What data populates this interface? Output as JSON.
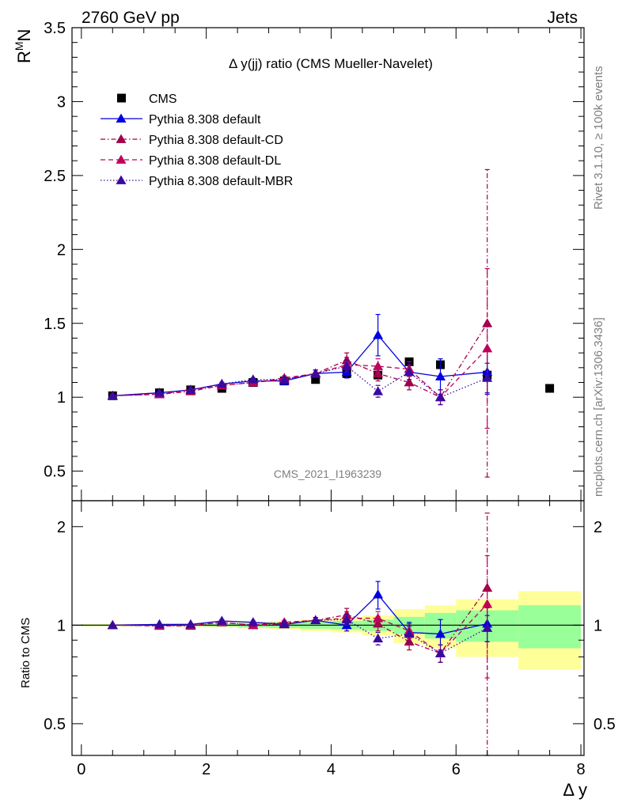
{
  "header": {
    "left": "2760 GeV pp",
    "right": "Jets"
  },
  "side_labels": {
    "top": "Rivet 3.1.10, ≥ 100k events",
    "bottom": "mcplots.cern.ch [arXiv:1306.3436]"
  },
  "watermark": "CMS_2021_I1963239",
  "colors": {
    "cms": "#000000",
    "default": "#0000e0",
    "cd": "#a0004a",
    "dl": "#c0005a",
    "mbr": "#3a0aa0",
    "band_inner": "#99ff99",
    "band_outer": "#ffff99"
  },
  "chart_data": [
    {
      "type": "line",
      "title": "Δ y(jj) ratio (CMS Mueller-Navelet)",
      "ylabel": "R^M N",
      "ylabel_main": "R",
      "ylabel_sup": "M",
      "ylabel_sub": "N",
      "xlim": [
        -0.15,
        8.05
      ],
      "ylim": [
        0.3,
        3.5
      ],
      "yticks": [
        0.5,
        1,
        1.5,
        2,
        2.5,
        3,
        3.5
      ],
      "ytick_labels": [
        "0.5",
        "1",
        "1.5",
        "2",
        "2.5",
        "3",
        "3.5"
      ],
      "legend_placement": "top-left",
      "series": [
        {
          "name": "CMS",
          "style": "markers",
          "x": [
            0.5,
            1.25,
            1.75,
            2.25,
            2.75,
            3.25,
            3.75,
            4.25,
            4.75,
            5.25,
            5.75,
            6.5,
            7.5
          ],
          "y": [
            1.01,
            1.03,
            1.05,
            1.06,
            1.1,
            1.11,
            1.12,
            1.16,
            1.15,
            1.24,
            1.22,
            1.15,
            1.06
          ]
        },
        {
          "name": "Pythia 8.308 default",
          "style": "solid",
          "x": [
            0.5,
            1.25,
            1.75,
            2.25,
            2.75,
            3.25,
            3.75,
            4.25,
            4.75,
            5.25,
            5.75,
            6.5
          ],
          "y": [
            1.01,
            1.03,
            1.05,
            1.09,
            1.11,
            1.11,
            1.16,
            1.17,
            1.42,
            1.17,
            1.14,
            1.17
          ],
          "yerr": [
            0.005,
            0.005,
            0.008,
            0.01,
            0.01,
            0.015,
            0.025,
            0.04,
            0.14,
            0.07,
            0.12,
            0.15
          ]
        },
        {
          "name": "Pythia 8.308 default-CD",
          "style": "dashdot",
          "x": [
            0.5,
            1.25,
            1.75,
            2.25,
            2.75,
            3.25,
            3.75,
            4.25,
            4.75,
            5.25,
            5.75,
            6.5
          ],
          "y": [
            1.01,
            1.02,
            1.04,
            1.08,
            1.1,
            1.12,
            1.16,
            1.25,
            1.16,
            1.1,
            1.0,
            1.5
          ],
          "yerr": [
            0.005,
            0.005,
            0.008,
            0.01,
            0.01,
            0.015,
            0.025,
            0.05,
            0.05,
            0.05,
            0.05,
            1.04
          ]
        },
        {
          "name": "Pythia 8.308 default-DL",
          "style": "dashed",
          "x": [
            0.5,
            1.25,
            1.75,
            2.25,
            2.75,
            3.25,
            3.75,
            4.25,
            4.75,
            5.25,
            5.75,
            6.5
          ],
          "y": [
            1.01,
            1.02,
            1.05,
            1.08,
            1.1,
            1.13,
            1.16,
            1.22,
            1.21,
            1.19,
            1.0,
            1.33
          ],
          "yerr": [
            0.005,
            0.005,
            0.008,
            0.01,
            0.01,
            0.015,
            0.025,
            0.05,
            0.05,
            0.05,
            0.05,
            0.54
          ]
        },
        {
          "name": "Pythia 8.308 default-MBR",
          "style": "dotted",
          "x": [
            0.5,
            1.25,
            1.75,
            2.25,
            2.75,
            3.25,
            3.75,
            4.25,
            4.75,
            5.25,
            5.75,
            6.5
          ],
          "y": [
            1.01,
            1.03,
            1.05,
            1.09,
            1.12,
            1.12,
            1.16,
            1.21,
            1.04,
            1.17,
            1.0,
            1.13
          ],
          "yerr": [
            0.005,
            0.005,
            0.008,
            0.01,
            0.01,
            0.015,
            0.025,
            0.04,
            0.04,
            0.05,
            0.05,
            0.1
          ]
        }
      ]
    },
    {
      "type": "line",
      "ylabel": "Ratio to CMS",
      "xlabel": "Δ y",
      "xlim": [
        -0.15,
        8.05
      ],
      "ylim": [
        0.4,
        2.4
      ],
      "log_y": true,
      "xticks": [
        0,
        2,
        4,
        6,
        8
      ],
      "xtick_labels": [
        "0",
        "2",
        "4",
        "6",
        "8"
      ],
      "yticks": [
        0.5,
        1,
        2
      ],
      "ytick_labels": [
        "0.5",
        "1",
        "2"
      ],
      "bands": {
        "x_edges": [
          0,
          1.0,
          1.5,
          2.0,
          2.5,
          3.0,
          3.5,
          4.0,
          4.5,
          5.0,
          5.5,
          6.0,
          7.0,
          8.0
        ],
        "inner": [
          0.005,
          0.005,
          0.008,
          0.01,
          0.015,
          0.02,
          0.025,
          0.03,
          0.04,
          0.06,
          0.09,
          0.11,
          0.15
        ],
        "outer": [
          0.008,
          0.008,
          0.012,
          0.015,
          0.022,
          0.03,
          0.04,
          0.05,
          0.07,
          0.12,
          0.15,
          0.2,
          0.27
        ]
      },
      "series": [
        {
          "name": "Pythia 8.308 default",
          "x": [
            0.5,
            1.25,
            1.75,
            2.25,
            2.75,
            3.25,
            3.75,
            4.25,
            4.75,
            5.25,
            5.75,
            6.5
          ],
          "y": [
            1.0,
            1.005,
            1.005,
            1.03,
            1.02,
            1.005,
            1.035,
            1.0,
            1.24,
            0.95,
            0.94,
            1.01
          ],
          "yerr": [
            0.005,
            0.005,
            0.008,
            0.01,
            0.01,
            0.015,
            0.02,
            0.04,
            0.12,
            0.07,
            0.1,
            0.12
          ]
        },
        {
          "name": "Pythia 8.308 default-CD",
          "x": [
            0.5,
            1.25,
            1.75,
            2.25,
            2.75,
            3.25,
            3.75,
            4.25,
            4.75,
            5.25,
            5.75,
            6.5
          ],
          "y": [
            1.0,
            0.995,
            0.995,
            1.02,
            1.0,
            1.01,
            1.035,
            1.075,
            1.01,
            0.89,
            0.82,
            1.3
          ],
          "yerr": [
            0.005,
            0.005,
            0.008,
            0.01,
            0.01,
            0.015,
            0.02,
            0.05,
            0.05,
            0.05,
            0.05,
            0.9
          ]
        },
        {
          "name": "Pythia 8.308 default-DL",
          "x": [
            0.5,
            1.25,
            1.75,
            2.25,
            2.75,
            3.25,
            3.75,
            4.25,
            4.75,
            5.25,
            5.75,
            6.5
          ],
          "y": [
            1.0,
            0.995,
            1.0,
            1.02,
            1.0,
            1.02,
            1.035,
            1.05,
            1.05,
            0.96,
            0.82,
            1.16
          ],
          "yerr": [
            0.005,
            0.005,
            0.008,
            0.01,
            0.01,
            0.015,
            0.02,
            0.05,
            0.05,
            0.05,
            0.05,
            0.47
          ]
        },
        {
          "name": "Pythia 8.308 default-MBR",
          "x": [
            0.5,
            1.25,
            1.75,
            2.25,
            2.75,
            3.25,
            3.75,
            4.25,
            4.75,
            5.25,
            5.75,
            6.5
          ],
          "y": [
            1.0,
            1.005,
            1.005,
            1.03,
            1.02,
            1.01,
            1.035,
            1.04,
            0.91,
            0.94,
            0.82,
            0.98
          ],
          "yerr": [
            0.005,
            0.005,
            0.008,
            0.01,
            0.01,
            0.015,
            0.02,
            0.04,
            0.04,
            0.05,
            0.05,
            0.09
          ]
        }
      ]
    }
  ]
}
